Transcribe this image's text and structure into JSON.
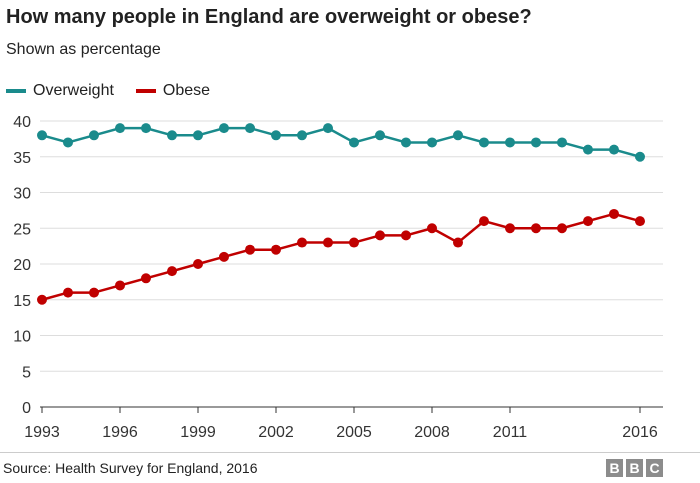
{
  "header": {
    "title": "How many people in England are overweight or obese?",
    "subtitle": "Shown as percentage"
  },
  "legend": [
    {
      "label": "Overweight",
      "color": "#1a8b8c"
    },
    {
      "label": "Obese",
      "color": "#c00000"
    }
  ],
  "footer": {
    "source": "Source: Health Survey for England, 2016",
    "logo_letters": [
      "B",
      "B",
      "C"
    ]
  },
  "chart_data": {
    "type": "line",
    "title": "How many people in England are overweight or obese?",
    "subtitle": "Shown as percentage",
    "x": [
      1993,
      1994,
      1995,
      1996,
      1997,
      1998,
      1999,
      2000,
      2001,
      2002,
      2003,
      2004,
      2005,
      2006,
      2007,
      2008,
      2009,
      2010,
      2011,
      2012,
      2013,
      2014,
      2015,
      2016
    ],
    "x_tick_labels": [
      "1993",
      "1996",
      "1999",
      "2002",
      "2005",
      "2008",
      "2011",
      "2016"
    ],
    "xlim": [
      1993,
      2016
    ],
    "y_ticks": [
      0,
      5,
      10,
      15,
      20,
      25,
      30,
      35,
      40
    ],
    "ylim": [
      0,
      40
    ],
    "grid": "horizontal",
    "legend_position": "top-left",
    "series": [
      {
        "name": "Overweight",
        "color": "#1a8b8c",
        "values": [
          38,
          37,
          38,
          39,
          39,
          38,
          38,
          39,
          39,
          38,
          38,
          39,
          37,
          38,
          37,
          37,
          38,
          37,
          37,
          37,
          37,
          36,
          36,
          35
        ]
      },
      {
        "name": "Obese",
        "color": "#c00000",
        "values": [
          15,
          16,
          16,
          17,
          18,
          19,
          20,
          21,
          22,
          22,
          23,
          23,
          23,
          24,
          24,
          25,
          23,
          26,
          25,
          25,
          25,
          26,
          27,
          26
        ]
      }
    ],
    "source": "Source: Health Survey for England, 2016"
  }
}
